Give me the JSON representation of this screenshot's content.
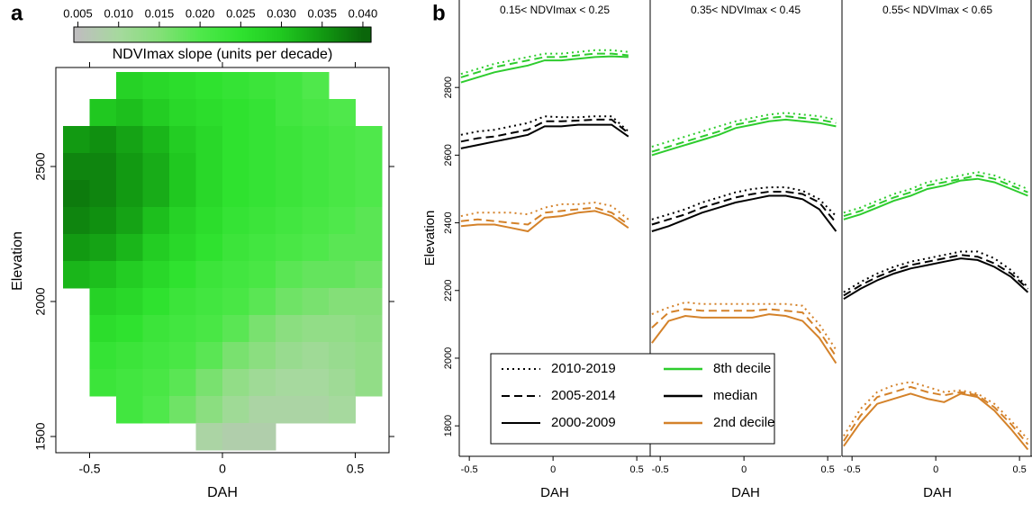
{
  "chart_data": [
    {
      "type": "heatmap",
      "label": "a",
      "colorbar_title": "NDVImax slope (units per decade)",
      "xlabel": "DAH",
      "ylabel": "Elevation",
      "xlim": [
        -0.6,
        0.6
      ],
      "ylim": [
        1450,
        2850
      ],
      "xticks": [
        -0.5,
        0,
        0.5
      ],
      "yticks": [
        1500,
        2000,
        2500
      ],
      "clim": [
        0.0045,
        0.041
      ],
      "colorbar_ticks": [
        0.005,
        {
          "value": 0.01,
          "label": "0.010"
        },
        0.015,
        {
          "value": 0.02,
          "label": "0.020"
        },
        0.025,
        {
          "value": 0.03,
          "label": "0.030"
        },
        0.035,
        {
          "value": 0.04,
          "label": "0.040"
        }
      ],
      "colors": [
        "#bebebe",
        "#a6d99e",
        "#84df78",
        "#4fe84b",
        "#2fe22f",
        "#20c820",
        "#129a12",
        "#0a660a"
      ],
      "x": [
        -0.55,
        -0.45,
        -0.35,
        -0.25,
        -0.15,
        -0.05,
        0.05,
        0.15,
        0.25,
        0.35,
        0.45,
        0.55
      ],
      "y": [
        2800,
        2700,
        2600,
        2500,
        2400,
        2300,
        2200,
        2100,
        2000,
        1900,
        1800,
        1700,
        1600,
        1500
      ],
      "values": [
        [
          null,
          null,
          0.028,
          0.027,
          0.026,
          0.025,
          0.024,
          0.023,
          0.022,
          0.02,
          null,
          null
        ],
        [
          null,
          0.03,
          0.031,
          0.029,
          0.027,
          0.026,
          0.025,
          0.024,
          0.022,
          0.021,
          0.02,
          null
        ],
        [
          0.035,
          0.036,
          0.034,
          0.032,
          0.029,
          0.027,
          0.025,
          0.024,
          0.023,
          0.022,
          0.021,
          0.02
        ],
        [
          0.037,
          0.037,
          0.035,
          0.033,
          0.03,
          0.027,
          0.025,
          0.024,
          0.023,
          0.022,
          0.021,
          0.02
        ],
        [
          0.038,
          0.037,
          0.035,
          0.033,
          0.03,
          0.027,
          0.025,
          0.024,
          0.023,
          0.022,
          0.021,
          0.02
        ],
        [
          0.037,
          0.036,
          0.034,
          0.031,
          0.028,
          0.026,
          0.024,
          0.023,
          0.022,
          0.021,
          0.02,
          0.019
        ],
        [
          0.035,
          0.034,
          0.032,
          0.029,
          0.027,
          0.025,
          0.023,
          0.022,
          0.021,
          0.02,
          0.019,
          0.019
        ],
        [
          0.032,
          0.031,
          0.029,
          0.027,
          0.025,
          0.023,
          0.022,
          0.021,
          0.019,
          0.018,
          0.018,
          0.017
        ],
        [
          null,
          0.028,
          0.027,
          0.025,
          0.023,
          0.022,
          0.021,
          0.019,
          0.017,
          0.016,
          0.015,
          0.015
        ],
        [
          null,
          0.026,
          0.025,
          0.023,
          0.022,
          0.021,
          0.019,
          0.016,
          0.014,
          0.013,
          0.013,
          0.014
        ],
        [
          null,
          0.024,
          0.023,
          0.022,
          0.021,
          0.019,
          0.016,
          0.014,
          0.012,
          0.011,
          0.012,
          0.013
        ],
        [
          null,
          0.023,
          0.022,
          0.021,
          0.019,
          0.016,
          0.013,
          0.011,
          0.01,
          0.01,
          0.011,
          0.013
        ],
        [
          null,
          null,
          0.022,
          0.02,
          0.017,
          0.014,
          0.011,
          0.009,
          0.009,
          0.009,
          0.01,
          null
        ],
        [
          null,
          null,
          null,
          null,
          null,
          0.009,
          0.008,
          0.008,
          null,
          null,
          null,
          null
        ]
      ]
    },
    {
      "type": "line",
      "label": "b",
      "xlabel": "DAH",
      "ylabel": "Elevation",
      "xlim": [
        -0.56,
        0.58
      ],
      "ylim": [
        1710,
        3000
      ],
      "xticks": [
        -0.5,
        0,
        0.5
      ],
      "yticks": [
        1800,
        2000,
        2200,
        2400,
        2600,
        2800
      ],
      "x": [
        -0.55,
        -0.45,
        -0.35,
        -0.25,
        -0.15,
        -0.05,
        0.05,
        0.15,
        0.25,
        0.35,
        0.45,
        0.55
      ],
      "legend": {
        "periods": [
          {
            "name": "2010-2019",
            "dash": "dotted"
          },
          {
            "name": "2005-2014",
            "dash": "dashed"
          },
          {
            "name": "2000-2009",
            "dash": "solid"
          }
        ],
        "deciles": [
          {
            "name": "8th decile",
            "color": "#2ecc2e"
          },
          {
            "name": "median",
            "color": "#000000"
          },
          {
            "name": "2nd decile",
            "color": "#d4822a"
          }
        ]
      },
      "panels": [
        {
          "title": "0.15< NDVImax < 0.25",
          "series": [
            {
              "decile": 0,
              "period": 2,
              "values": [
                2815,
                2830,
                2845,
                2855,
                2865,
                2880,
                2880,
                2885,
                2890,
                2892,
                2890,
                null
              ]
            },
            {
              "decile": 0,
              "period": 1,
              "values": [
                2830,
                2845,
                2860,
                2870,
                2880,
                2890,
                2890,
                2895,
                2900,
                2900,
                2895,
                null
              ]
            },
            {
              "decile": 0,
              "period": 0,
              "values": [
                2840,
                2855,
                2870,
                2880,
                2890,
                2900,
                2900,
                2905,
                2910,
                2910,
                2905,
                null
              ]
            },
            {
              "decile": 1,
              "period": 2,
              "values": [
                2620,
                2630,
                2640,
                2650,
                2660,
                2685,
                2685,
                2690,
                2690,
                2690,
                2655,
                null
              ]
            },
            {
              "decile": 1,
              "period": 1,
              "values": [
                2640,
                2650,
                2655,
                2665,
                2675,
                2700,
                2700,
                2702,
                2705,
                2705,
                2665,
                null
              ]
            },
            {
              "decile": 1,
              "period": 0,
              "values": [
                2660,
                2670,
                2675,
                2685,
                2695,
                2715,
                2712,
                2712,
                2715,
                2715,
                2670,
                null
              ]
            },
            {
              "decile": 2,
              "period": 2,
              "values": [
                2390,
                2395,
                2395,
                2385,
                2375,
                2415,
                2420,
                2430,
                2435,
                2420,
                2385,
                null
              ]
            },
            {
              "decile": 2,
              "period": 1,
              "values": [
                2405,
                2410,
                2405,
                2400,
                2395,
                2430,
                2435,
                2440,
                2445,
                2430,
                2395,
                null
              ]
            },
            {
              "decile": 2,
              "period": 0,
              "values": [
                2420,
                2430,
                2430,
                2430,
                2425,
                2445,
                2455,
                2455,
                2460,
                2450,
                2410,
                null
              ]
            }
          ]
        },
        {
          "title": "0.35< NDVImax < 0.45",
          "series": [
            {
              "decile": 0,
              "period": 2,
              "values": [
                2600,
                2615,
                2630,
                2645,
                2660,
                2680,
                2690,
                2700,
                2705,
                2700,
                2695,
                2685
              ]
            },
            {
              "decile": 0,
              "period": 1,
              "values": [
                2610,
                2625,
                2640,
                2655,
                2670,
                2690,
                2700,
                2710,
                2715,
                2710,
                2705,
                2695
              ]
            },
            {
              "decile": 0,
              "period": 0,
              "values": [
                2625,
                2640,
                2655,
                2670,
                2685,
                2700,
                2710,
                2720,
                2725,
                2720,
                2715,
                2705
              ]
            },
            {
              "decile": 1,
              "period": 2,
              "values": [
                2375,
                2390,
                2410,
                2430,
                2445,
                2460,
                2470,
                2480,
                2480,
                2470,
                2440,
                2375
              ]
            },
            {
              "decile": 1,
              "period": 1,
              "values": [
                2395,
                2410,
                2425,
                2445,
                2460,
                2475,
                2485,
                2492,
                2492,
                2485,
                2460,
                2400
              ]
            },
            {
              "decile": 1,
              "period": 0,
              "values": [
                2410,
                2425,
                2440,
                2460,
                2475,
                2490,
                2500,
                2505,
                2505,
                2495,
                2470,
                2420
              ]
            },
            {
              "decile": 2,
              "period": 2,
              "values": [
                2045,
                2110,
                2125,
                2120,
                2120,
                2120,
                2120,
                2130,
                2125,
                2110,
                2060,
                1985
              ]
            },
            {
              "decile": 2,
              "period": 1,
              "values": [
                2090,
                2135,
                2145,
                2140,
                2140,
                2140,
                2140,
                2145,
                2140,
                2135,
                2080,
                2005
              ]
            },
            {
              "decile": 2,
              "period": 0,
              "values": [
                2130,
                2150,
                2165,
                2160,
                2160,
                2160,
                2160,
                2160,
                2160,
                2155,
                2100,
                2025
              ]
            }
          ]
        },
        {
          "title": "0.55< NDVImax < 0.65",
          "series": [
            {
              "decile": 0,
              "period": 2,
              "values": [
                2410,
                2425,
                2445,
                2465,
                2480,
                2500,
                2510,
                2525,
                2530,
                2520,
                2500,
                2480
              ]
            },
            {
              "decile": 0,
              "period": 1,
              "values": [
                2420,
                2435,
                2455,
                2475,
                2490,
                2510,
                2520,
                2530,
                2540,
                2530,
                2510,
                2490
              ]
            },
            {
              "decile": 0,
              "period": 0,
              "values": [
                2430,
                2445,
                2465,
                2485,
                2500,
                2520,
                2530,
                2540,
                2550,
                2540,
                2520,
                2500
              ]
            },
            {
              "decile": 1,
              "period": 2,
              "values": [
                2175,
                2205,
                2230,
                2250,
                2265,
                2275,
                2285,
                2295,
                2290,
                2270,
                2240,
                2195
              ]
            },
            {
              "decile": 1,
              "period": 1,
              "values": [
                2185,
                2215,
                2240,
                2260,
                2275,
                2285,
                2295,
                2305,
                2300,
                2280,
                2250,
                2205
              ]
            },
            {
              "decile": 1,
              "period": 0,
              "values": [
                2195,
                2225,
                2250,
                2270,
                2285,
                2295,
                2305,
                2315,
                2315,
                2295,
                2260,
                2210
              ]
            },
            {
              "decile": 2,
              "period": 2,
              "values": [
                1740,
                1810,
                1865,
                1880,
                1895,
                1880,
                1870,
                1895,
                1885,
                1845,
                1790,
                1730
              ]
            },
            {
              "decile": 2,
              "period": 1,
              "values": [
                1755,
                1830,
                1885,
                1900,
                1915,
                1900,
                1890,
                1900,
                1890,
                1855,
                1805,
                1745
              ]
            },
            {
              "decile": 2,
              "period": 0,
              "values": [
                1770,
                1850,
                1900,
                1920,
                1930,
                1915,
                1900,
                1905,
                1895,
                1865,
                1815,
                1760
              ]
            }
          ]
        }
      ]
    }
  ]
}
